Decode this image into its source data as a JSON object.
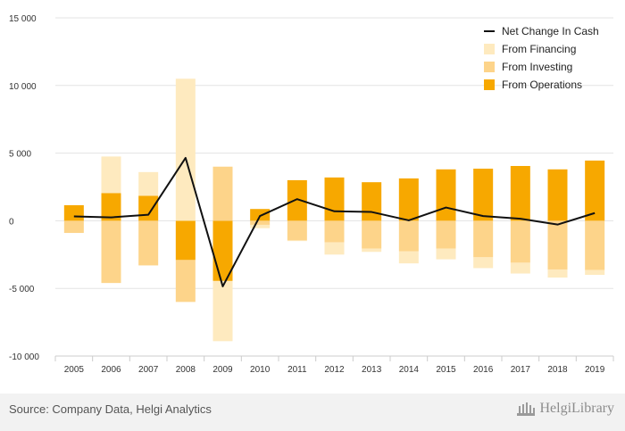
{
  "chart_data": {
    "type": "bar",
    "stacked": true,
    "categories": [
      "2005",
      "2006",
      "2007",
      "2008",
      "2009",
      "2010",
      "2011",
      "2012",
      "2013",
      "2014",
      "2015",
      "2016",
      "2017",
      "2018",
      "2019"
    ],
    "series": [
      {
        "name": "From Operations",
        "kind": "bar",
        "color": "#f7a800",
        "values": [
          1150,
          2050,
          1850,
          -2900,
          -4450,
          870,
          3000,
          3200,
          2850,
          3130,
          3800,
          3850,
          4050,
          3800,
          4450
        ]
      },
      {
        "name": "From Investing",
        "kind": "bar",
        "color": "#fdd48a",
        "values": [
          -900,
          -4600,
          -3300,
          -3100,
          4000,
          -300,
          -1450,
          -1600,
          -2050,
          -2250,
          -2050,
          -2700,
          -3100,
          -3600,
          -3650
        ]
      },
      {
        "name": "From Financing",
        "kind": "bar",
        "color": "#feeabf",
        "values": [
          0,
          2700,
          1750,
          10500,
          -4450,
          -250,
          -50,
          -900,
          -250,
          -900,
          -800,
          -800,
          -800,
          -600,
          -350
        ]
      },
      {
        "name": "Net Change In Cash",
        "kind": "line",
        "color": "#111111",
        "values": [
          320,
          250,
          450,
          4650,
          -4850,
          350,
          1600,
          700,
          650,
          30,
          980,
          350,
          150,
          -280,
          570
        ]
      }
    ],
    "legend_order": [
      "Net Change In Cash",
      "From Financing",
      "From Investing",
      "From Operations"
    ],
    "yticks": [
      -10000,
      -5000,
      0,
      5000,
      10000,
      15000
    ],
    "ytick_labels": [
      "-10 000",
      "-5 000",
      "0",
      "5 000",
      "10 000",
      "15 000"
    ],
    "ylim": [
      -10000,
      15000
    ],
    "grid": true,
    "legend_position": "top-right"
  },
  "footer": {
    "source": "Source: Company Data, Helgi Analytics",
    "logo_text": "HelgiLibrary"
  }
}
